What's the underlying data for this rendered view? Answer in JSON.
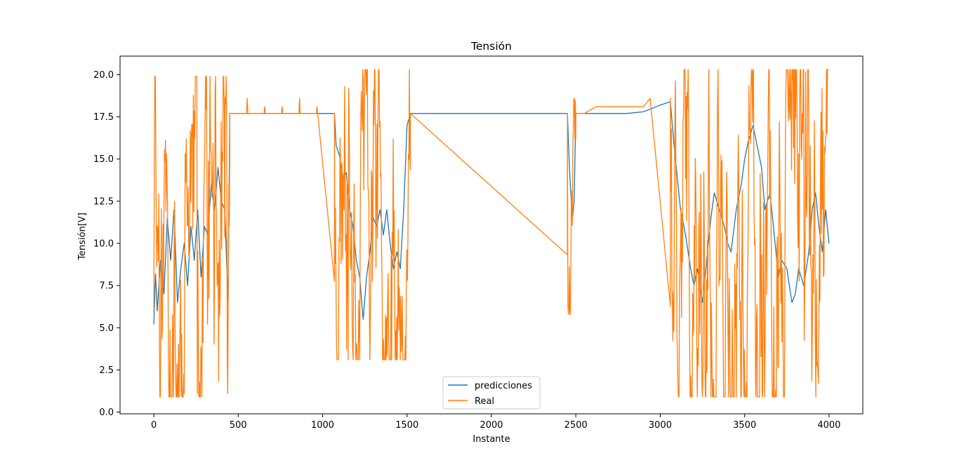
{
  "chart_data": {
    "type": "line",
    "title": "Tensión",
    "xlabel": "Instante",
    "ylabel": "Tensión[V]",
    "xlim": [
      -200,
      4200
    ],
    "ylim": [
      -0.1,
      21.1
    ],
    "xticks": [
      0,
      500,
      1000,
      1500,
      2000,
      2500,
      3000,
      3500,
      4000
    ],
    "xtick_labels": [
      "0",
      "500",
      "1000",
      "1500",
      "2000",
      "2500",
      "3000",
      "3500",
      "4000"
    ],
    "yticks": [
      0.0,
      2.5,
      5.0,
      7.5,
      10.0,
      12.5,
      15.0,
      17.5,
      20.0
    ],
    "ytick_labels": [
      "0.0",
      "2.5",
      "5.0",
      "7.5",
      "10.0",
      "12.5",
      "15.0",
      "17.5",
      "20.0"
    ],
    "grid": false,
    "legend_position": "bottom-center",
    "series": [
      {
        "name": "predicciones",
        "color": "#1f77b4",
        "points": [
          [
            0,
            5.2
          ],
          [
            10,
            8.2
          ],
          [
            20,
            6.0
          ],
          [
            40,
            9.0
          ],
          [
            60,
            7.0
          ],
          [
            80,
            11.5
          ],
          [
            100,
            9.0
          ],
          [
            120,
            12.0
          ],
          [
            140,
            6.5
          ],
          [
            160,
            8.5
          ],
          [
            180,
            10.0
          ],
          [
            200,
            7.5
          ],
          [
            220,
            11.0
          ],
          [
            240,
            9.0
          ],
          [
            260,
            12.0
          ],
          [
            280,
            8.0
          ],
          [
            300,
            11.0
          ],
          [
            320,
            10.5
          ],
          [
            340,
            13.5
          ],
          [
            360,
            12.0
          ],
          [
            380,
            14.5
          ],
          [
            400,
            12.5
          ],
          [
            420,
            12.0
          ],
          [
            440,
            6.5
          ],
          [
            450,
            17.7
          ],
          [
            1070,
            17.7
          ],
          [
            1080,
            15.8
          ],
          [
            1100,
            15.2
          ],
          [
            1120,
            13.8
          ],
          [
            1140,
            14.2
          ],
          [
            1160,
            12.0
          ],
          [
            1180,
            11.0
          ],
          [
            1200,
            9.0
          ],
          [
            1220,
            8.0
          ],
          [
            1240,
            5.5
          ],
          [
            1260,
            8.0
          ],
          [
            1280,
            9.5
          ],
          [
            1300,
            11.5
          ],
          [
            1320,
            11.0
          ],
          [
            1340,
            12.0
          ],
          [
            1360,
            10.5
          ],
          [
            1380,
            12.0
          ],
          [
            1400,
            10.0
          ],
          [
            1420,
            8.5
          ],
          [
            1440,
            9.5
          ],
          [
            1460,
            8.5
          ],
          [
            1480,
            12.0
          ],
          [
            1500,
            17.0
          ],
          [
            1520,
            17.7
          ],
          [
            2450,
            17.7
          ],
          [
            2460,
            15.0
          ],
          [
            2470,
            13.0
          ],
          [
            2480,
            11.5
          ],
          [
            2490,
            12.5
          ],
          [
            2500,
            17.7
          ],
          [
            2800,
            17.7
          ],
          [
            2900,
            17.8
          ],
          [
            2950,
            18.0
          ],
          [
            3000,
            18.2
          ],
          [
            3060,
            18.4
          ],
          [
            3080,
            16.0
          ],
          [
            3100,
            14.0
          ],
          [
            3120,
            12.0
          ],
          [
            3150,
            10.5
          ],
          [
            3180,
            8.5
          ],
          [
            3200,
            7.5
          ],
          [
            3220,
            8.5
          ],
          [
            3250,
            6.5
          ],
          [
            3280,
            9.5
          ],
          [
            3300,
            11.5
          ],
          [
            3320,
            13.0
          ],
          [
            3350,
            12.0
          ],
          [
            3380,
            11.0
          ],
          [
            3400,
            10.0
          ],
          [
            3420,
            9.5
          ],
          [
            3450,
            12.0
          ],
          [
            3480,
            13.5
          ],
          [
            3500,
            15.0
          ],
          [
            3520,
            16.0
          ],
          [
            3550,
            17.0
          ],
          [
            3580,
            15.5
          ],
          [
            3600,
            14.5
          ],
          [
            3620,
            12.0
          ],
          [
            3650,
            13.0
          ],
          [
            3680,
            10.0
          ],
          [
            3700,
            8.0
          ],
          [
            3720,
            9.0
          ],
          [
            3750,
            8.5
          ],
          [
            3780,
            6.5
          ],
          [
            3800,
            7.0
          ],
          [
            3820,
            8.5
          ],
          [
            3850,
            7.5
          ],
          [
            3880,
            9.5
          ],
          [
            3900,
            12.0
          ],
          [
            3920,
            13.0
          ],
          [
            3940,
            11.0
          ],
          [
            3960,
            9.5
          ],
          [
            3980,
            12.0
          ],
          [
            4000,
            10.0
          ]
        ]
      },
      {
        "name": "Real",
        "color": "#ff7f0e",
        "segments": [
          {
            "x": [
              0,
              450
            ],
            "min": 0.9,
            "max": 19.9,
            "noise_seed": 11
          },
          {
            "x": [
              1070,
              1520
            ],
            "min": 3.1,
            "max": 20.3,
            "noise_seed": 23
          },
          {
            "x": [
              2450,
              2500
            ],
            "min": 5.8,
            "max": 18.6,
            "noise_seed": 37
          },
          {
            "x": [
              3060,
              4000
            ],
            "min": 0.9,
            "max": 20.3,
            "noise_seed": 41
          }
        ],
        "plateaus": [
          {
            "x": [
              450,
              1070
            ],
            "value": 17.7,
            "spikes": [
              18.6,
              18.1,
              18.1,
              18.6,
              18.1
            ]
          },
          {
            "x": [
              1520,
              2450
            ],
            "value": 17.7,
            "spikes": []
          },
          {
            "x": [
              2500,
              3060
            ],
            "value": 17.7,
            "steps": [
              [
                2550,
                17.7
              ],
              [
                2620,
                18.1
              ],
              [
                2700,
                18.1
              ],
              [
                2800,
                18.1
              ],
              [
                2900,
                18.1
              ],
              [
                2940,
                18.6
              ],
              [
                3060,
                18.6
              ]
            ]
          }
        ]
      }
    ]
  }
}
